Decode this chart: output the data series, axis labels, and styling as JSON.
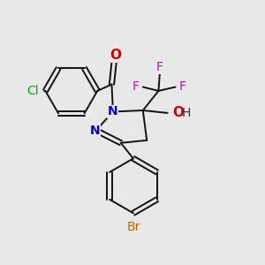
{
  "background_color": "#e8e8e8",
  "fig_width": 3.0,
  "fig_height": 3.0,
  "dpi": 100,
  "colors": {
    "bond": "#111111",
    "Cl": "#00aa00",
    "N": "#0000cc",
    "O": "#cc0000",
    "F": "#cc00cc",
    "Br": "#bb6600",
    "H": "#333333"
  }
}
